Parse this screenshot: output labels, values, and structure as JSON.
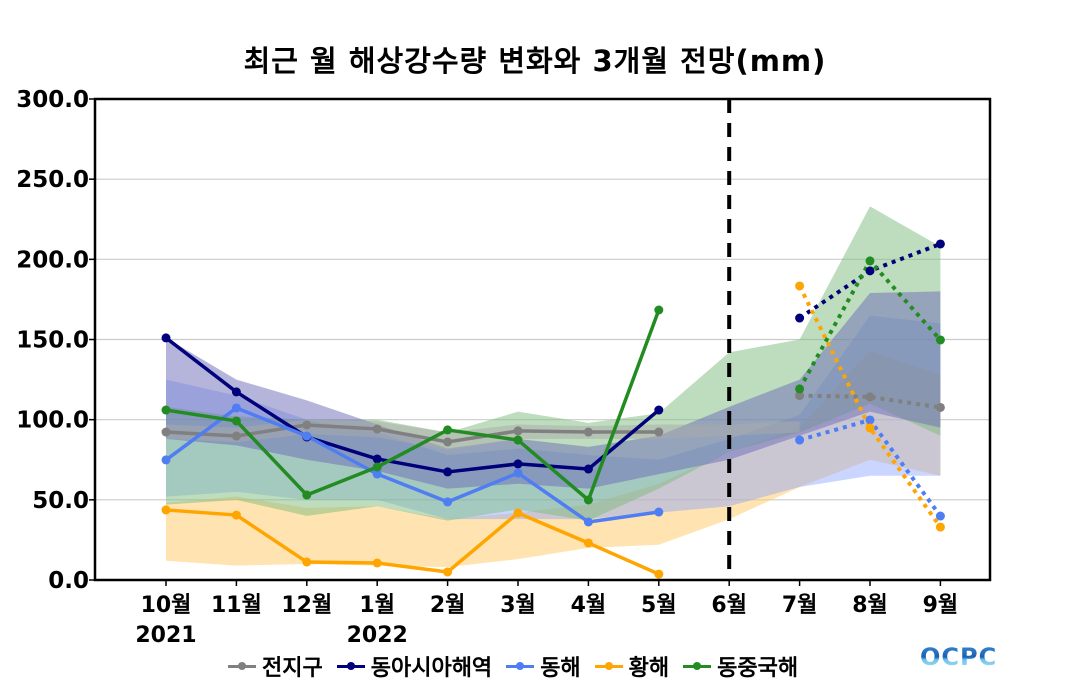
{
  "chart_data": {
    "type": "line",
    "title": "최근 월 해상강수량 변화와 3개월 전망(mm)",
    "xlabel": "",
    "ylabel": "",
    "ylim": [
      0,
      300
    ],
    "yticks": [
      "0.0",
      "50.0",
      "100.0",
      "150.0",
      "200.0",
      "250.0",
      "300.0"
    ],
    "ytick_values": [
      0,
      50,
      100,
      150,
      200,
      250,
      300
    ],
    "grid": "horizontal",
    "categories": [
      "10월",
      "11월",
      "12월",
      "1월",
      "2월",
      "3월",
      "4월",
      "5월",
      "6월",
      "7월",
      "8월",
      "9월"
    ],
    "year_labels": [
      {
        "index": 0,
        "label": "2021"
      },
      {
        "index": 3,
        "label": "2022"
      }
    ],
    "forecast_divider_index": 8,
    "legend_position": "bottom",
    "series": [
      {
        "name": "전지구",
        "color": "#808080",
        "observed": [
          92.3,
          89.8,
          96.7,
          94.2,
          86.1,
          93.0,
          92.3,
          92.3,
          null,
          null,
          null,
          null
        ],
        "forecast": [
          null,
          null,
          null,
          null,
          null,
          null,
          null,
          null,
          null,
          115.0,
          114.2,
          107.6
        ],
        "band_upper": [
          97,
          95,
          100,
          99,
          92,
          97,
          96,
          97,
          97,
          99,
          null,
          null
        ],
        "band_lower": [
          88,
          86,
          91,
          89,
          81,
          88,
          88,
          88,
          90,
          92,
          null,
          null
        ]
      },
      {
        "name": "동아시아해역",
        "color": "#00007a",
        "observed": [
          151.0,
          117.3,
          89.2,
          75.5,
          67.4,
          72.4,
          69.2,
          106.0,
          null,
          null,
          null,
          null
        ],
        "forecast": [
          null,
          null,
          null,
          null,
          null,
          null,
          null,
          null,
          null,
          163.4,
          192.8,
          209.6
        ],
        "band_upper": [
          151,
          125,
          112,
          97,
          82,
          88,
          83,
          90,
          108,
          125,
          179,
          180
        ],
        "band_lower": [
          88,
          84,
          75,
          68,
          57,
          60,
          57,
          66,
          75,
          90,
          105,
          95
        ]
      },
      {
        "name": "동해",
        "color": "#4f7df2",
        "observed": [
          74.9,
          107.3,
          89.8,
          66.1,
          48.7,
          66.7,
          36.2,
          42.4,
          null,
          null,
          null,
          null
        ],
        "forecast": [
          null,
          null,
          null,
          null,
          null,
          null,
          null,
          null,
          null,
          87.3,
          99.8,
          39.9
        ],
        "band_upper": [
          125,
          115,
          100,
          92,
          78,
          82,
          78,
          75,
          88,
          103,
          165,
          160
        ],
        "band_lower": [
          52,
          55,
          50,
          50,
          38,
          38,
          38,
          42,
          46,
          58,
          65,
          65
        ]
      },
      {
        "name": "황해",
        "color": "#ffa500",
        "observed": [
          43.7,
          40.5,
          11.2,
          10.6,
          5.0,
          41.8,
          23.1,
          3.7,
          null,
          null,
          null,
          null
        ],
        "forecast": [
          null,
          null,
          null,
          null,
          null,
          null,
          null,
          null,
          null,
          183.4,
          94.8,
          33.0
        ],
        "band_upper": [
          48,
          52,
          45,
          46,
          38,
          42,
          47,
          60,
          80,
          95,
          143,
          128
        ],
        "band_lower": [
          12,
          9,
          10,
          9,
          8,
          13,
          20,
          22,
          38,
          58,
          75,
          65
        ]
      },
      {
        "name": "동중국해",
        "color": "#228b22",
        "observed": [
          106.0,
          99.2,
          53.0,
          70.5,
          93.6,
          87.3,
          49.9,
          168.4,
          null,
          null,
          null,
          null
        ],
        "forecast": [
          null,
          null,
          null,
          null,
          null,
          null,
          null,
          null,
          null,
          119.2,
          199.0,
          149.7
        ],
        "band_upper": [
          108,
          102,
          100,
          100,
          92,
          105,
          98,
          104,
          142,
          150,
          233,
          208
        ],
        "band_lower": [
          47,
          50,
          40,
          46,
          37,
          44,
          37,
          57,
          80,
          92,
          110,
          90
        ]
      }
    ]
  },
  "legend": {
    "items": [
      {
        "label": "전지구",
        "color": "#808080"
      },
      {
        "label": "동아시아해역",
        "color": "#00007a"
      },
      {
        "label": "동해",
        "color": "#4f7df2"
      },
      {
        "label": "황해",
        "color": "#ffa500"
      },
      {
        "label": "동중국해",
        "color": "#228b22"
      }
    ]
  },
  "logo": {
    "text": "OCPC"
  },
  "band_colors": {
    "전지구": "#a9a9a9",
    "동아시아해역": "#6b6bb8",
    "동해": "#8aa5ff",
    "황해": "#ffcc70",
    "동중국해": "#7dbb7d"
  }
}
